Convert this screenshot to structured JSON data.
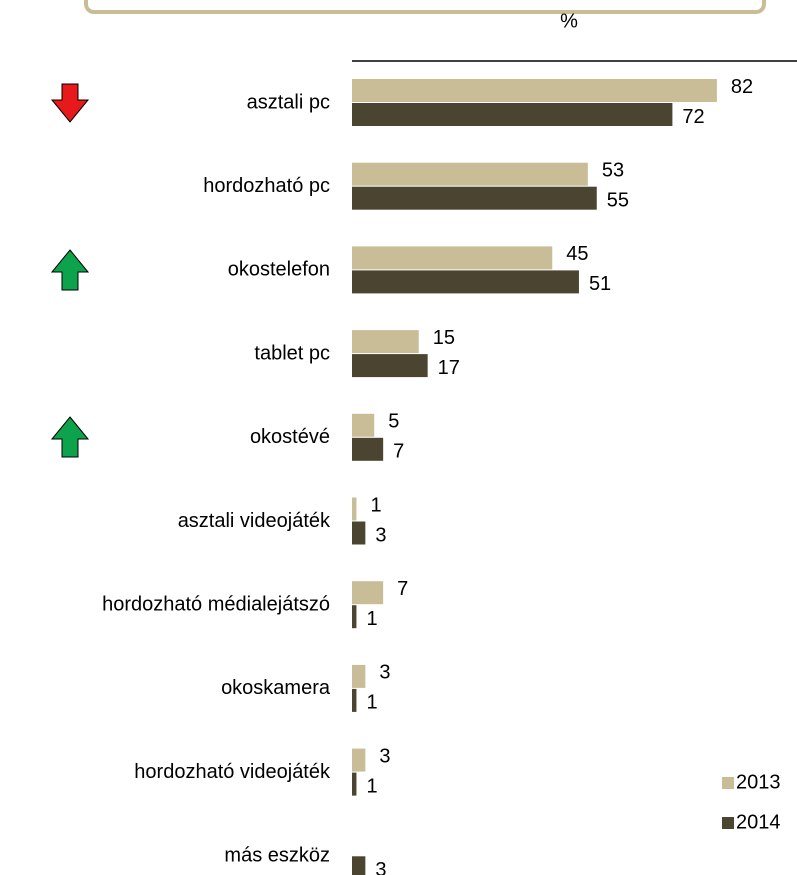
{
  "chart_data": {
    "type": "bar",
    "orientation": "horizontal",
    "x_label": "%",
    "categories": [
      "asztali pc",
      "hordozható pc",
      "okostelefon",
      "tablet pc",
      "okostévé",
      "asztali videojáték",
      "hordozható médialejátszó",
      "okoskamera",
      "hordozható videojáték",
      "más eszköz"
    ],
    "series": [
      {
        "name": "2013",
        "color": "#c9bd97",
        "values": [
          82,
          53,
          45,
          15,
          5,
          1,
          7,
          3,
          3,
          null
        ]
      },
      {
        "name": "2014",
        "color": "#4b4431",
        "values": [
          72,
          55,
          51,
          17,
          7,
          3,
          1,
          1,
          1,
          3
        ]
      }
    ],
    "xlim": [
      0,
      100
    ]
  }
}
